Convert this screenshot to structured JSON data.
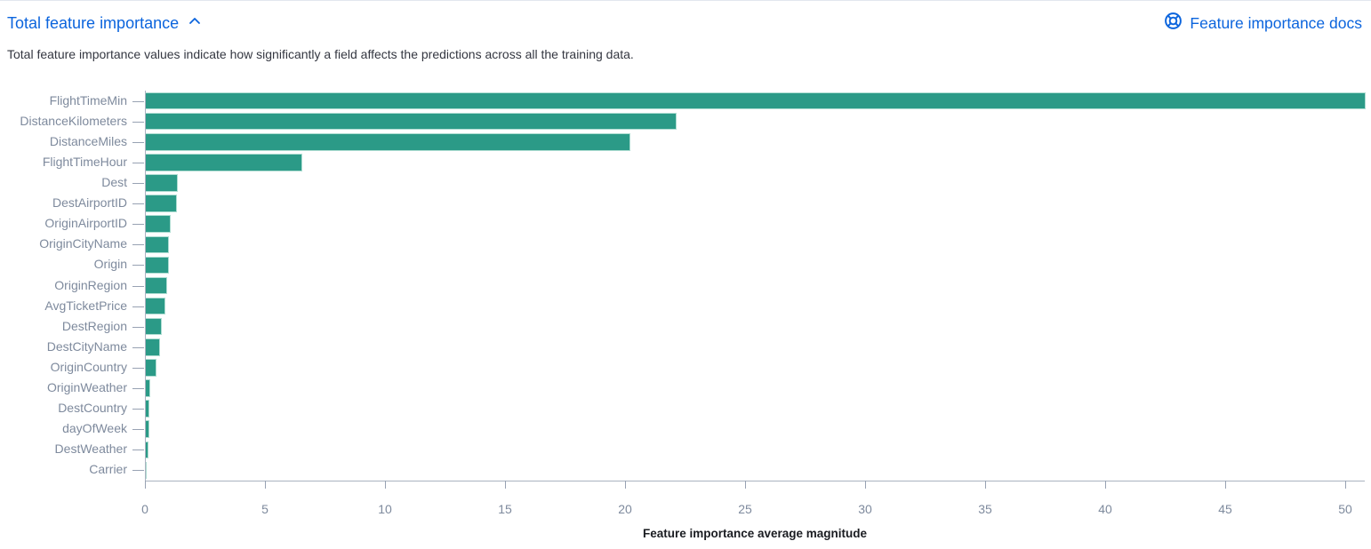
{
  "header": {
    "title": "Total feature importance",
    "docs_label": "Feature importance docs"
  },
  "description": "Total feature importance values indicate how significantly a field affects the predictions across all the training data.",
  "colors": {
    "bar": "#2b9a87",
    "link_blue": "#0b64dd",
    "axis_label": "#7e8a9d",
    "description_text": "#343741",
    "axis_title": "#1a1c21"
  },
  "chart_data": {
    "type": "bar",
    "orientation": "horizontal",
    "title": "",
    "xlabel": "Feature importance average magnitude",
    "ylabel": "",
    "grid": false,
    "xlim": [
      0,
      51
    ],
    "xticks": [
      0,
      5,
      10,
      15,
      20,
      25,
      30,
      35,
      40,
      45,
      50
    ],
    "categories": [
      "FlightTimeMin",
      "DistanceKilometers",
      "DistanceMiles",
      "FlightTimeHour",
      "Dest",
      "DestAirportID",
      "OriginAirportID",
      "OriginCityName",
      "Origin",
      "OriginRegion",
      "AvgTicketPrice",
      "DestRegion",
      "DestCityName",
      "OriginCountry",
      "OriginWeather",
      "DestCountry",
      "dayOfWeek",
      "DestWeather",
      "Carrier"
    ],
    "values": [
      50.8,
      22.1,
      20.2,
      6.5,
      1.33,
      1.3,
      1.05,
      0.96,
      0.95,
      0.89,
      0.83,
      0.68,
      0.58,
      0.43,
      0.19,
      0.15,
      0.15,
      0.12,
      0.04
    ]
  }
}
